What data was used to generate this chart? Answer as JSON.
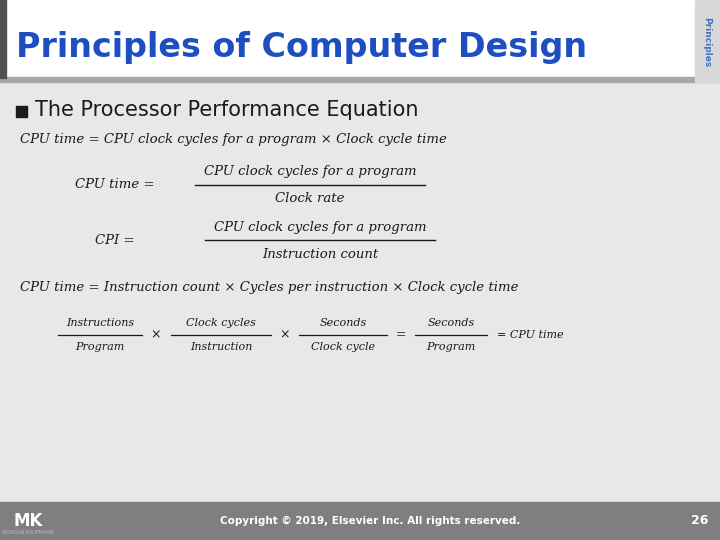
{
  "title": "Principles of Computer Design",
  "title_color": "#1E4FC0",
  "sidebar_text": "Principles",
  "sidebar_text_color": "#4472C4",
  "bullet_text": "The Processor Performance Equation",
  "bullet_color": "#1A1A1A",
  "bg_color": "#E8E8E8",
  "header_bg": "#FFFFFF",
  "footer_bg": "#7F7F7F",
  "footer_text": "Copyright © 2019, Elsevier Inc. All rights reserved.",
  "footer_page": "26",
  "eq1": "CPU time = CPU clock cycles for a program × Clock cycle time",
  "eq2_lhs": "CPU time = ",
  "eq2_num": "CPU clock cycles for a program",
  "eq2_den": "Clock rate",
  "eq3_lhs": "CPI = ",
  "eq3_num": "CPU clock cycles for a program",
  "eq3_den": "Instruction count",
  "eq4": "CPU time = Instruction count × Cycles per instruction × Clock cycle time",
  "eq5_num1": "Instructions",
  "eq5_den1": "Program",
  "eq5_num2": "Clock cycles",
  "eq5_den2": "Instruction",
  "eq5_num3": "Seconds",
  "eq5_den3": "Clock cycle",
  "eq5_num4": "Seconds",
  "eq5_den4": "Program",
  "eq5_rhs": "= CPU time",
  "header_line_color": "#A0A0A0",
  "left_bar_color": "#606060",
  "mk_logo": "MK"
}
